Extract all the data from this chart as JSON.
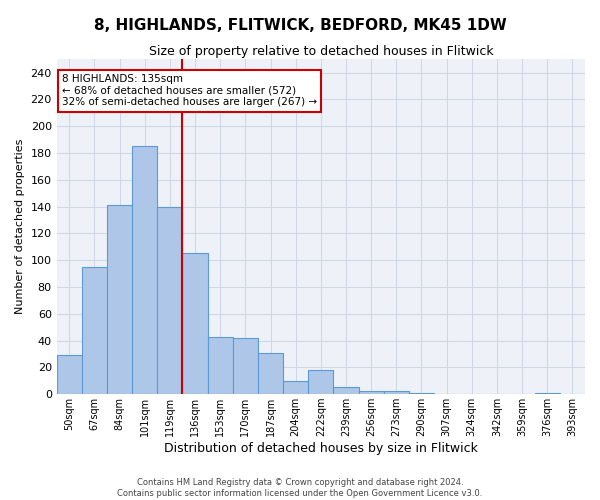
{
  "title": "8, HIGHLANDS, FLITWICK, BEDFORD, MK45 1DW",
  "subtitle": "Size of property relative to detached houses in Flitwick",
  "xlabel": "Distribution of detached houses by size in Flitwick",
  "ylabel": "Number of detached properties",
  "categories": [
    "50sqm",
    "67sqm",
    "84sqm",
    "101sqm",
    "119sqm",
    "136sqm",
    "153sqm",
    "170sqm",
    "187sqm",
    "204sqm",
    "222sqm",
    "239sqm",
    "256sqm",
    "273sqm",
    "290sqm",
    "307sqm",
    "324sqm",
    "342sqm",
    "359sqm",
    "376sqm",
    "393sqm"
  ],
  "values": [
    29,
    95,
    141,
    185,
    140,
    105,
    43,
    42,
    31,
    10,
    18,
    5,
    2,
    2,
    1,
    0,
    0,
    0,
    0,
    1,
    0
  ],
  "bar_color": "#aec6e8",
  "bar_edge_color": "#5b9bd5",
  "grid_color": "#d0d8e8",
  "background_color": "#eef2f8",
  "property_line_x": 4.5,
  "property_label": "8 HIGHLANDS: 135sqm",
  "annotation_line1": "← 68% of detached houses are smaller (572)",
  "annotation_line2": "32% of semi-detached houses are larger (267) →",
  "annotation_box_color": "#ffffff",
  "annotation_box_edge_color": "#cc0000",
  "property_line_color": "#cc0000",
  "ylim": [
    0,
    250
  ],
  "yticks": [
    0,
    20,
    40,
    60,
    80,
    100,
    120,
    140,
    160,
    180,
    200,
    220,
    240
  ],
  "footer1": "Contains HM Land Registry data © Crown copyright and database right 2024.",
  "footer2": "Contains public sector information licensed under the Open Government Licence v3.0."
}
